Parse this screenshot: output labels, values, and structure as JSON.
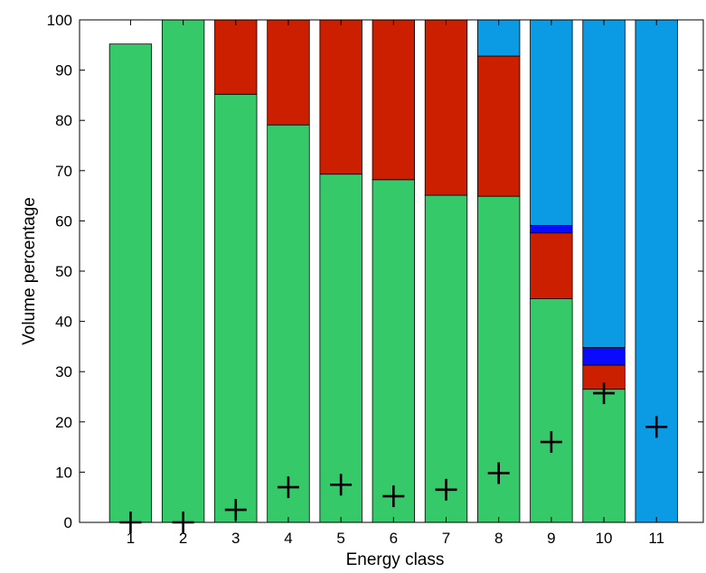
{
  "chart_data": {
    "type": "bar",
    "stacked": true,
    "title": "",
    "xlabel": "Energy class",
    "ylabel": "Volume percentage",
    "categories": [
      "1",
      "2",
      "3",
      "4",
      "5",
      "6",
      "7",
      "8",
      "9",
      "10",
      "11"
    ],
    "ylim": [
      0,
      100
    ],
    "yticks": [
      0,
      10,
      20,
      30,
      40,
      50,
      60,
      70,
      80,
      90,
      100
    ],
    "grid": false,
    "series": [
      {
        "color": "#35c96a",
        "values": [
          95.2,
          100,
          85.2,
          79.1,
          69.3,
          68.2,
          65.1,
          64.9,
          44.5,
          26.5,
          0
        ]
      },
      {
        "color": "#cc1f00",
        "values": [
          0,
          0,
          14.8,
          20.9,
          30.7,
          31.8,
          34.9,
          27.9,
          13.1,
          4.8,
          0
        ]
      },
      {
        "color": "#0a0aff",
        "values": [
          0,
          0,
          0,
          0,
          0,
          0,
          0,
          0,
          1.5,
          3.5,
          0
        ]
      },
      {
        "color": "#0a9be4",
        "values": [
          0,
          0,
          0,
          0,
          0,
          0,
          0,
          7.2,
          40.9,
          65.2,
          100
        ]
      }
    ],
    "markers": {
      "symbol": "+",
      "values": [
        0,
        0,
        2.5,
        7.0,
        7.5,
        5.2,
        6.5,
        9.8,
        16.0,
        25.7,
        19.0
      ]
    }
  }
}
